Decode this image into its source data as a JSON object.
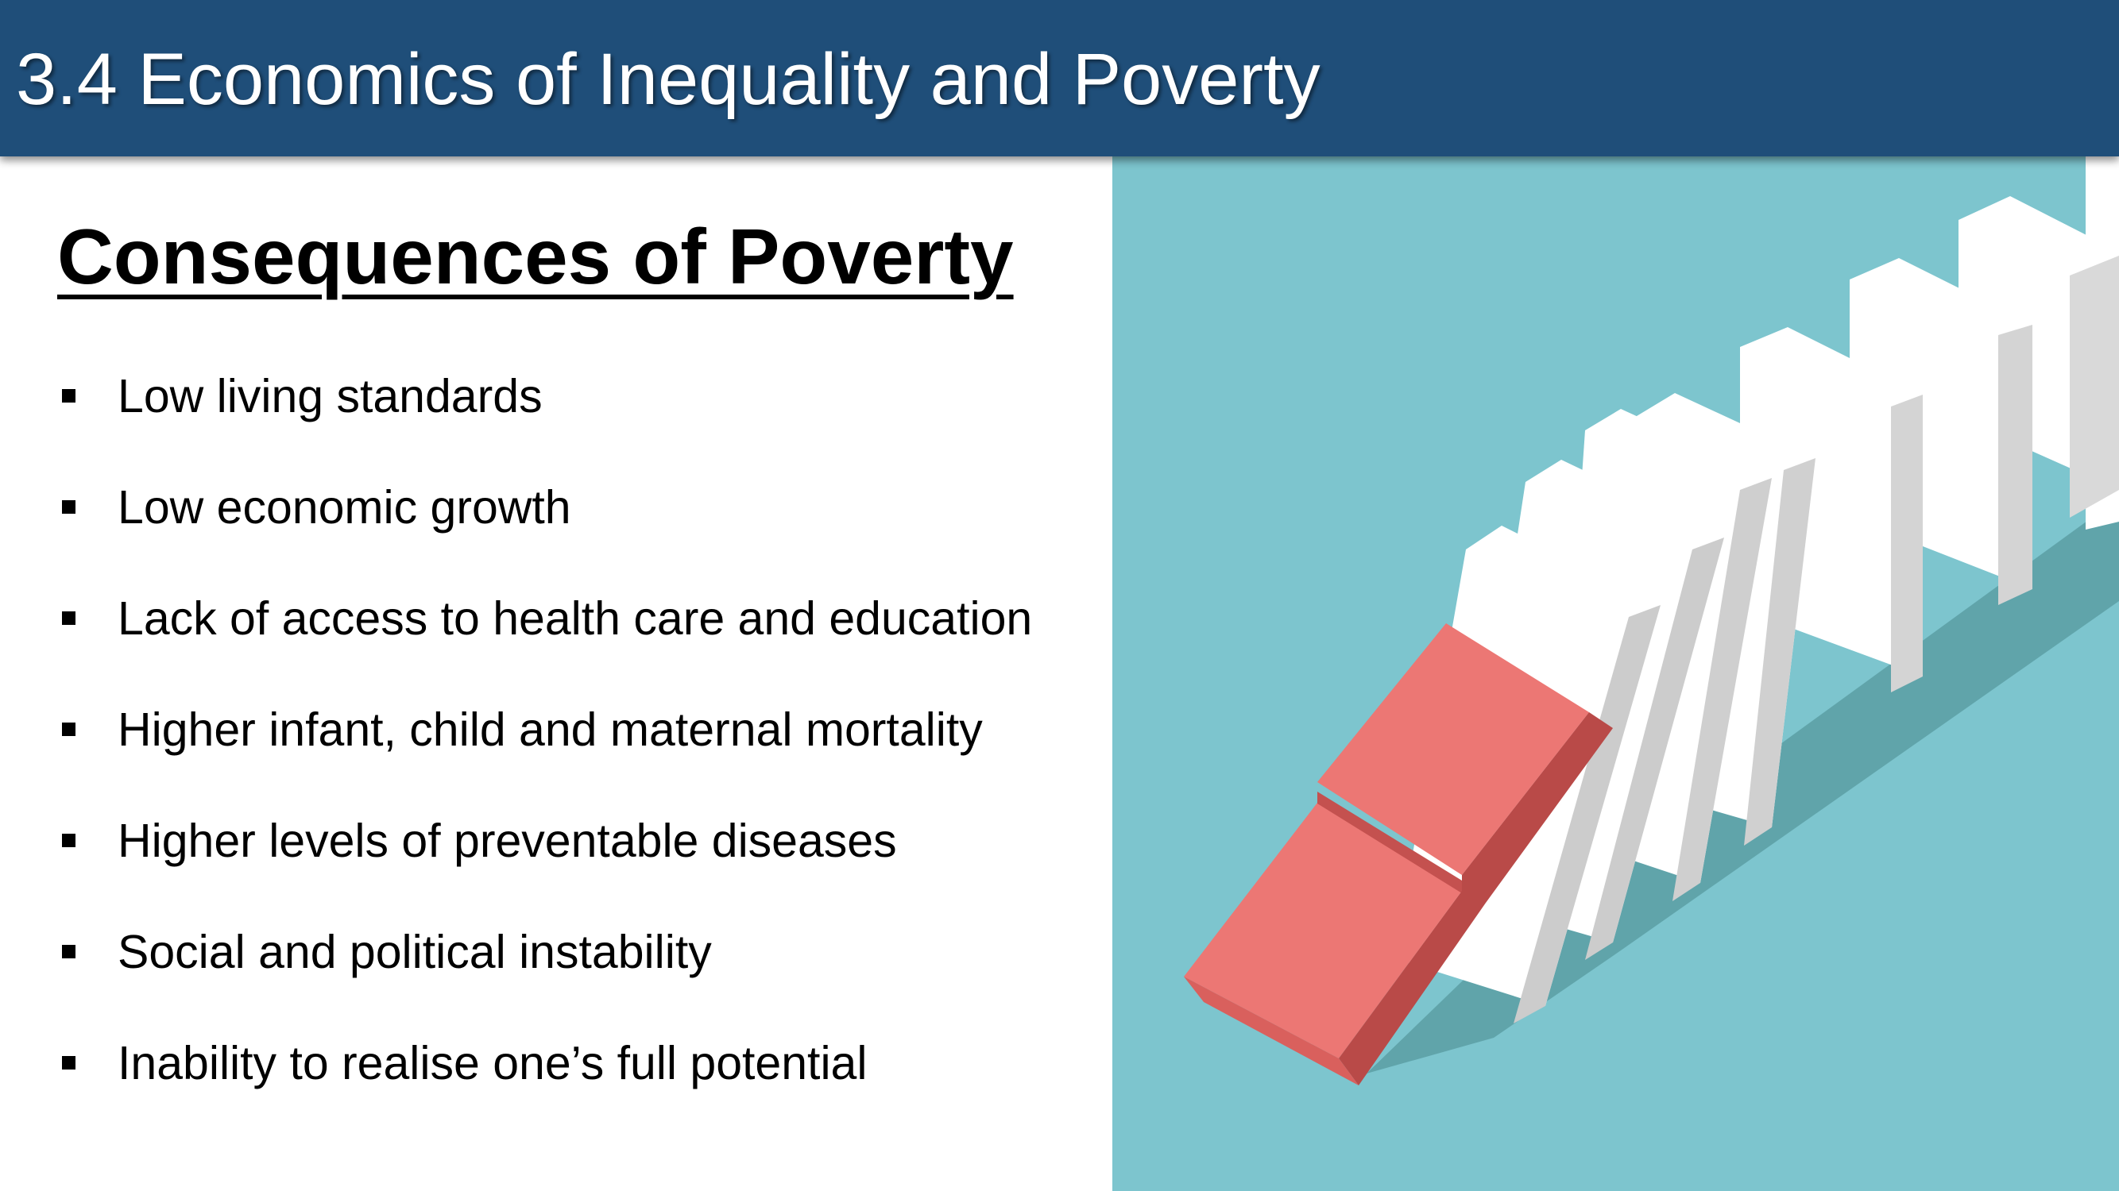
{
  "slide": {
    "title": "3.4 Economics of Inequality and Poverty",
    "heading": "Consequences of Poverty",
    "bullets": [
      "Low living standards",
      "Low economic growth",
      "Lack of access to health care and education",
      "Higher infant, child and maternal mortality",
      "Higher levels of preventable diseases",
      "Social and political instability",
      "Inability to realise one’s full potential"
    ]
  },
  "illustration": {
    "subject": "falling-dominoes",
    "background_color": "#7dc5ce",
    "domino_color": "#ffffff",
    "lead_domino_color": "#ec7774"
  },
  "colors": {
    "title_bar": "#1f4e79",
    "title_text": "#ffffff",
    "body_text": "#000000"
  }
}
